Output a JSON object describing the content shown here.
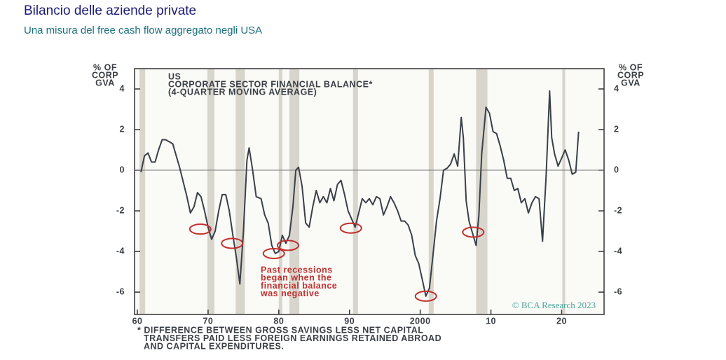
{
  "title": "Bilancio delle aziende private",
  "subtitle": "Una misura del free cash flow aggregato negli USA",
  "chart_data": {
    "type": "line",
    "title": [
      "US",
      "CORPORATE SECTOR FINANCIAL BALANCE*",
      "(4-QUARTER MOVING AVERAGE)"
    ],
    "ylabel": [
      "% OF",
      "CORP",
      "GVA"
    ],
    "x": [
      1960.5,
      1961,
      1961.5,
      1962,
      1962.5,
      1963,
      1963.5,
      1964,
      1965,
      1966,
      1967,
      1967.5,
      1968,
      1968.5,
      1969,
      1969.5,
      1970,
      1970.5,
      1971,
      1971.5,
      1972,
      1972.5,
      1973,
      1973.5,
      1974,
      1974.5,
      1975,
      1975.5,
      1975.8,
      1976.3,
      1976.8,
      1977.5,
      1978,
      1978.5,
      1979,
      1979.5,
      1980,
      1980.5,
      1981,
      1981.5,
      1982,
      1982.4,
      1982.8,
      1983.3,
      1983.8,
      1984.3,
      1984.8,
      1985.3,
      1985.8,
      1986.3,
      1986.8,
      1987.3,
      1987.8,
      1988.3,
      1988.8,
      1989.3,
      1989.8,
      1990.3,
      1990.8,
      1991.3,
      1991.8,
      1992.3,
      1992.8,
      1993.3,
      1993.8,
      1994.3,
      1994.8,
      1995.3,
      1995.8,
      1996.3,
      1996.8,
      1997.3,
      1997.8,
      1998.3,
      1998.8,
      1999.3,
      1999.8,
      2000.3,
      2000.8,
      2001.3,
      2001.8,
      2002.3,
      2002.8,
      2003.3,
      2003.8,
      2004.3,
      2004.8,
      2005.3,
      2005.8,
      2006.1,
      2006.5,
      2006.9,
      2007.4,
      2007.9,
      2008.3,
      2008.7,
      2009.3,
      2009.8,
      2010.3,
      2010.8,
      2011.3,
      2011.8,
      2012.3,
      2012.8,
      2013.3,
      2013.8,
      2014.3,
      2014.8,
      2015.3,
      2015.8,
      2016.3,
      2016.8,
      2017.3,
      2017.8,
      2018.3,
      2018.6,
      2019,
      2019.5,
      2020,
      2020.5,
      2021,
      2021.5,
      2022,
      2022.4
    ],
    "series": [
      {
        "name": "US",
        "color": "#3a4048",
        "values": [
          -0.1,
          0.7,
          0.85,
          0.4,
          0.4,
          1.0,
          1.5,
          1.5,
          1.3,
          0.1,
          -1.3,
          -2.1,
          -1.8,
          -1.1,
          -1.3,
          -2.0,
          -2.8,
          -3.4,
          -3.0,
          -2.0,
          -1.2,
          -1.2,
          -2.0,
          -3.2,
          -4.3,
          -5.6,
          -3.0,
          0.5,
          1.1,
          0,
          -1.3,
          -1.4,
          -2.2,
          -2.6,
          -3.7,
          -4.1,
          -4.0,
          -3.2,
          -3.6,
          -3.2,
          -1.8,
          0,
          0.15,
          -0.8,
          -2.6,
          -2.8,
          -1.8,
          -1.0,
          -1.6,
          -1.3,
          -1.6,
          -0.9,
          -1.5,
          -0.7,
          -0.5,
          -1.2,
          -2.0,
          -2.4,
          -2.8,
          -2.1,
          -1.4,
          -1.6,
          -1.4,
          -1.7,
          -1.3,
          -1.4,
          -2.2,
          -1.8,
          -1.3,
          -1.6,
          -2.0,
          -2.5,
          -2.5,
          -2.7,
          -3.2,
          -4.2,
          -4.6,
          -5.4,
          -6.2,
          -5.8,
          -4.2,
          -2.5,
          -1.4,
          0,
          0.1,
          0.3,
          0.8,
          0.2,
          2.6,
          1.6,
          -1.5,
          -2.5,
          -3.1,
          -3.7,
          -2.2,
          0.8,
          3.1,
          2.8,
          1.9,
          1.8,
          1.2,
          0.5,
          -0.4,
          -0.4,
          -1.0,
          -0.9,
          -1.6,
          -1.4,
          -2.1,
          -1.6,
          -1.3,
          -1.4,
          -3.5,
          -0.3,
          3.9,
          1.6,
          0.8,
          0.2,
          0.6,
          1.0,
          0.5,
          -0.2,
          -0.1,
          1.9
        ]
      }
    ],
    "recessions": [
      [
        1960.3,
        1961.1
      ],
      [
        1969.9,
        1970.9
      ],
      [
        1973.9,
        1975.2
      ],
      [
        1980.0,
        1980.5
      ],
      [
        1981.5,
        1982.9
      ],
      [
        1990.5,
        1991.2
      ],
      [
        2001.2,
        2001.9
      ],
      [
        2007.9,
        2009.5
      ],
      [
        2020.1,
        2020.5
      ]
    ],
    "highlights": {
      "color": "#c0302e",
      "x": [
        1968.9,
        1973.4,
        1979.3,
        1981.3,
        1990.2,
        2000.8,
        2007.5
      ],
      "y": [
        -2.9,
        -3.6,
        -4.1,
        -3.7,
        -2.85,
        -6.2,
        -3.05
      ]
    },
    "annotation": [
      "Past recessions",
      "began when the",
      "financial balance",
      "was negative"
    ],
    "watermark": "© BCA Research 2023",
    "footnote": [
      "* DIFFERENCE BETWEEN GROSS SAVINGS LESS NET CAPITAL",
      "TRANSFERS PAID LESS FOREIGN EARNINGS RETAINED ABROAD",
      "AND CAPITAL EXPENDITURES."
    ],
    "xlim": [
      1959.6,
      2026
    ],
    "ylim": [
      -7.1,
      5.0
    ],
    "xticks": [
      {
        "value": 1960,
        "label": "60"
      },
      {
        "value": 1970,
        "label": "70"
      },
      {
        "value": 1980,
        "label": "80"
      },
      {
        "value": 1990,
        "label": "90"
      },
      2000,
      {
        "value": 2010,
        "label": "10"
      },
      {
        "value": 2020,
        "label": "20"
      }
    ],
    "yticks": [
      4,
      2,
      0,
      -2,
      -4,
      -6
    ],
    "zero_line": true
  }
}
